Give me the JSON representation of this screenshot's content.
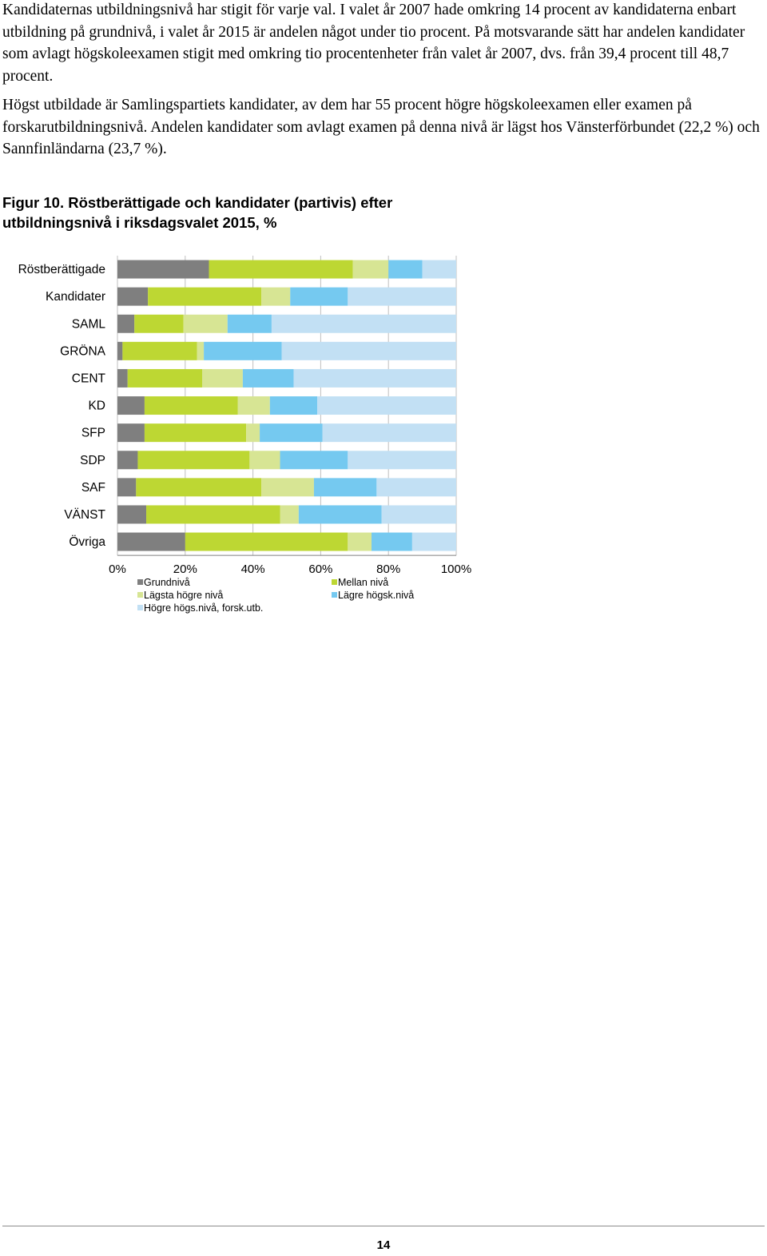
{
  "paragraphs": [
    "Kandidaternas utbildningsnivå har stigit för varje val. I valet år 2007 hade omkring 14 procent av kandidaterna enbart utbildning på grundnivå, i valet år 2015 är andelen något under tio procent. På motsvarande sätt har andelen kandidater som avlagt högskoleexamen stigit med omkring tio procentenheter från valet år 2007, dvs. från 39,4 procent till 48,7 procent.",
    "Högst utbildade är Samlingspartiets kandidater, av dem har 55 procent högre högskoleexamen eller examen på forskarutbildningsnivå. Andelen kandidater som avlagt examen på denna nivå är lägst hos Vänsterförbundet (22,2 %) och Sannfinländarna (23,7 %)."
  ],
  "figure": {
    "title_line1": "Figur 10. Röstberättigade och kandidater (partivis) efter",
    "title_line2": "utbildningsnivå i riksdagsvalet 2015, %"
  },
  "chart_data": {
    "type": "bar",
    "orientation": "horizontal",
    "stacked": true,
    "categories": [
      "Röstberättigade",
      "Kandidater",
      "SAML",
      "GRÖNA",
      "CENT",
      "KD",
      "SFP",
      "SDP",
      "SAF",
      "VÄNST",
      "Övriga"
    ],
    "series": [
      {
        "name": "Grundnivå",
        "color": "#7f7f7f",
        "values": [
          27,
          9,
          5,
          1.5,
          3,
          8,
          8,
          6,
          5.5,
          8.5,
          20
        ]
      },
      {
        "name": "Mellan nivå",
        "color": "#bdd733",
        "values": [
          42.5,
          33.5,
          14.5,
          22,
          22,
          27.5,
          30,
          33,
          37,
          39.5,
          48
        ]
      },
      {
        "name": "Lägsta högre nivå",
        "color": "#d7e594",
        "values": [
          10.5,
          8.5,
          13,
          2,
          12,
          9.5,
          4,
          9,
          15.5,
          5.5,
          7
        ]
      },
      {
        "name": "Lägre högsk.nivå",
        "color": "#75c9f0",
        "values": [
          10,
          17,
          13,
          23,
          15,
          14,
          18.5,
          20,
          18.5,
          24.5,
          12
        ]
      },
      {
        "name": "Högre högs.nivå, forsk.utb.",
        "color": "#c2e0f4",
        "values": [
          10,
          32,
          54.5,
          51.5,
          48,
          41,
          39.5,
          32,
          23.5,
          22,
          13
        ]
      }
    ],
    "xlim": [
      0,
      100
    ],
    "xticks": [
      "0%",
      "20%",
      "40%",
      "60%",
      "80%",
      "100%"
    ],
    "grid": true,
    "legend": "bottom"
  },
  "page_number": "14"
}
